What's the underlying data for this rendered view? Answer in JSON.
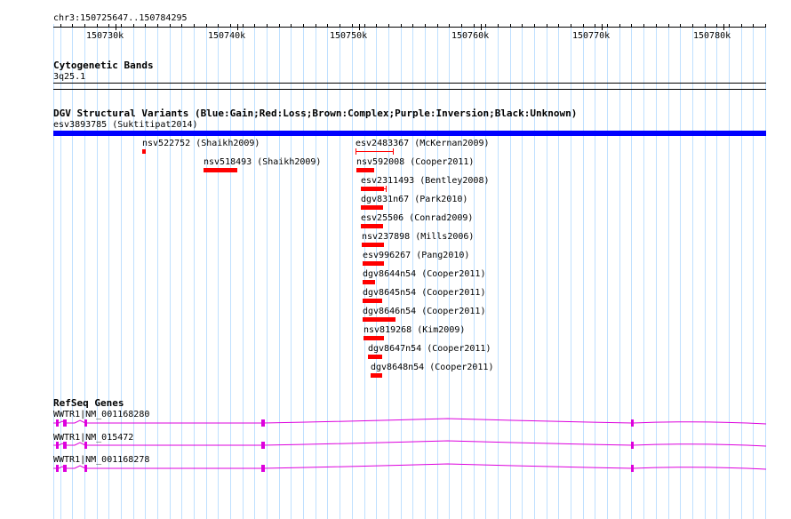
{
  "ruler": {
    "position": "chr3:150725647..150784295",
    "ticks": [
      "150730k",
      "150740k",
      "150750k",
      "150760k",
      "150770k",
      "150780k"
    ]
  },
  "cytobands": {
    "title": "Cytogenetic Bands",
    "band": "3q25.1"
  },
  "dgv": {
    "title": "DGV Structural Variants (Blue:Gain;Red:Loss;Brown:Complex;Purple:Inversion;Black:Unknown)",
    "top_variant": "esv3893785 (Suktitipat2014)",
    "colors": {
      "gain": "#0000ff",
      "loss": "#ff0000",
      "track_line": "#000000"
    },
    "variants": [
      "nsv522752 (Shaikh2009)",
      "esv2483367 (McKernan2009)",
      "nsv518493 (Shaikh2009)",
      "nsv592008 (Cooper2011)",
      "esv2311493 (Bentley2008)",
      "dgv831n67 (Park2010)",
      "esv25506 (Conrad2009)",
      "nsv237898 (Mills2006)",
      "esv996267 (Pang2010)",
      "dgv8644n54 (Cooper2011)",
      "dgv8645n54 (Cooper2011)",
      "dgv8646n54 (Cooper2011)",
      "nsv819268 (Kim2009)",
      "dgv8647n54 (Cooper2011)",
      "dgv8648n54 (Cooper2011)"
    ]
  },
  "refseq": {
    "title": "RefSeq Genes",
    "color": "#dd00dd",
    "transcripts": [
      "WWTR1|NM_001168280",
      "WWTR1|NM_015472",
      "WWTR1|NM_001168278"
    ]
  }
}
